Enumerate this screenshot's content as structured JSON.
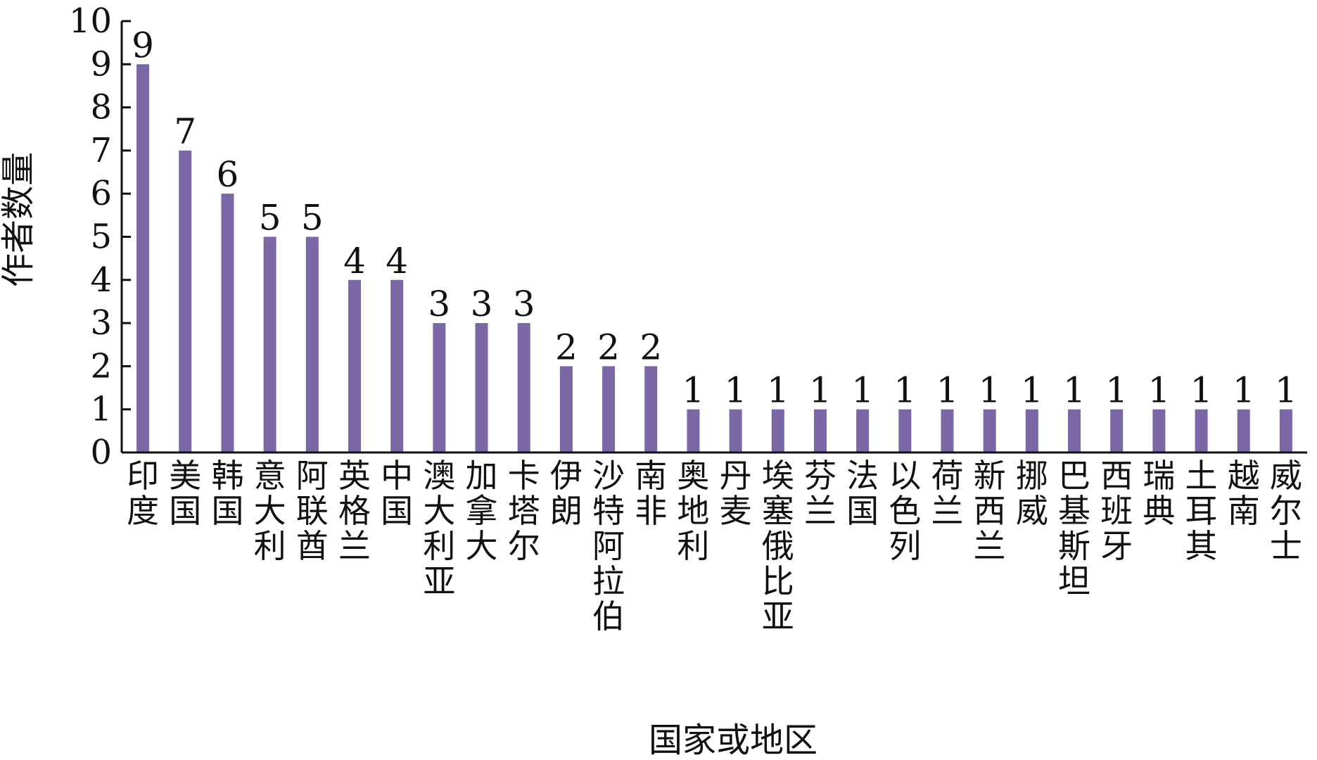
{
  "chart_data": {
    "type": "bar",
    "xlabel": "国家或地区",
    "ylabel": "作者数量",
    "ylim": [
      0,
      10
    ],
    "yticks": [
      0,
      1,
      2,
      3,
      4,
      5,
      6,
      7,
      8,
      9,
      10
    ],
    "bar_color": "#7B66A6",
    "grid": false,
    "legend": "none",
    "categories": [
      "印度",
      "美国",
      "韩国",
      "意大利",
      "阿联酋",
      "英格兰",
      "中国",
      "澳大利亚",
      "加拿大",
      "卡塔尔",
      "伊朗",
      "沙特阿拉伯",
      "南非",
      "奥地利",
      "丹麦",
      "埃塞俄比亚",
      "芬兰",
      "法国",
      "以色列",
      "荷兰",
      "新西兰",
      "挪威",
      "巴基斯坦",
      "西班牙",
      "瑞典",
      "土耳其",
      "越南",
      "威尔士"
    ],
    "values": [
      9,
      7,
      6,
      5,
      5,
      4,
      4,
      3,
      3,
      3,
      2,
      2,
      2,
      1,
      1,
      1,
      1,
      1,
      1,
      1,
      1,
      1,
      1,
      1,
      1,
      1,
      1,
      1
    ],
    "data_labels": [
      "9",
      "7",
      "6",
      "5",
      "5",
      "4",
      "4",
      "3",
      "3",
      "3",
      "2",
      "2",
      "2",
      "1",
      "1",
      "1",
      "1",
      "1",
      "1",
      "1",
      "1",
      "1",
      "1",
      "1",
      "1",
      "1",
      "1",
      "1"
    ]
  }
}
